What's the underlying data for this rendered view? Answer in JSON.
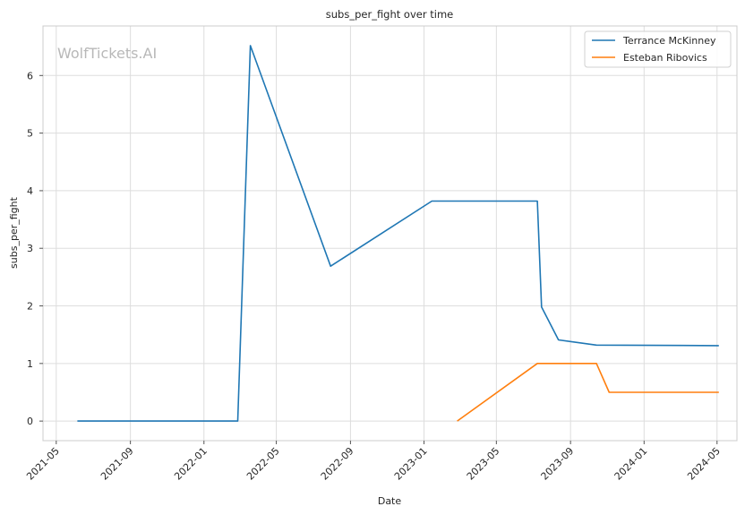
{
  "watermark": "WolfTickets.AI",
  "chart_data": {
    "type": "line",
    "title": "subs_per_fight over time",
    "xlabel": "Date",
    "ylabel": "subs_per_fight",
    "xlim": [
      "2021-04-09",
      "2024-06-03"
    ],
    "ylim": [
      -0.34,
      6.86
    ],
    "x_ticks": [
      "2021-05",
      "2021-09",
      "2022-01",
      "2022-05",
      "2022-09",
      "2023-01",
      "2023-05",
      "2023-09",
      "2024-01",
      "2024-05"
    ],
    "y_ticks": [
      0,
      1,
      2,
      3,
      4,
      5,
      6
    ],
    "grid": true,
    "legend_position": "top-right",
    "series": [
      {
        "name": "Terrance McKinney",
        "color": "#1f77b4",
        "points": [
          {
            "date": "2021-06-05",
            "value": 0
          },
          {
            "date": "2022-02-26",
            "value": 0
          },
          {
            "date": "2022-03-19",
            "value": 6.52
          },
          {
            "date": "2022-07-30",
            "value": 2.69
          },
          {
            "date": "2023-01-14",
            "value": 3.82
          },
          {
            "date": "2023-07-08",
            "value": 3.82
          },
          {
            "date": "2023-07-15",
            "value": 1.98
          },
          {
            "date": "2023-08-12",
            "value": 1.41
          },
          {
            "date": "2023-10-14",
            "value": 1.32
          },
          {
            "date": "2024-05-04",
            "value": 1.31
          }
        ]
      },
      {
        "name": "Esteban Ribovics",
        "color": "#ff7f0e",
        "points": [
          {
            "date": "2023-02-25",
            "value": 0
          },
          {
            "date": "2023-07-08",
            "value": 1.0
          },
          {
            "date": "2023-10-14",
            "value": 1.0
          },
          {
            "date": "2023-11-04",
            "value": 0.5
          },
          {
            "date": "2024-05-04",
            "value": 0.5
          }
        ]
      }
    ]
  }
}
